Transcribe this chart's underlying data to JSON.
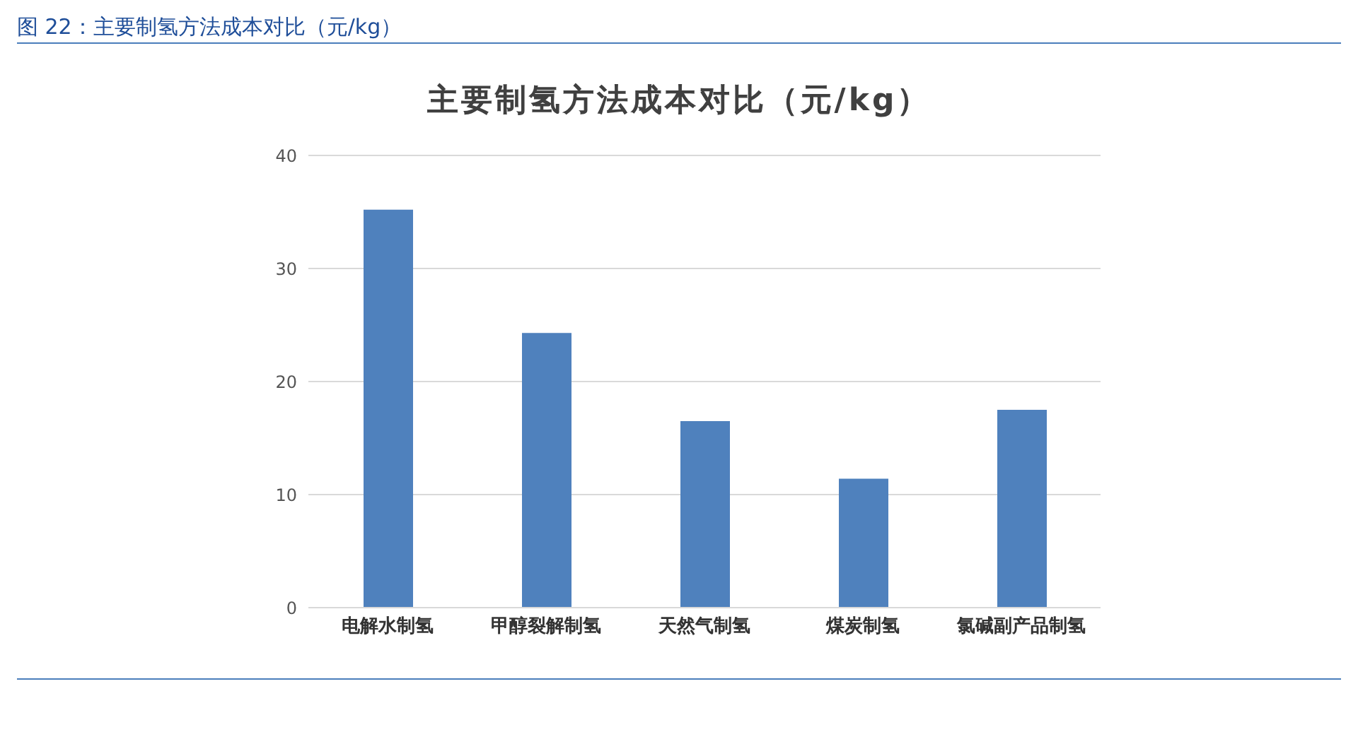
{
  "chart_data": {
    "type": "bar",
    "title": "主要制氢方法成本对比（元/kg）",
    "annotations": [
      "图 22：主要制氢方法成本对比（元/kg）"
    ],
    "categories": [
      "电解水制氢",
      "甲醇裂解制氢",
      "天然气制氢",
      "煤炭制氢",
      "氯碱副产品制氢"
    ],
    "values": [
      35.2,
      24.3,
      16.5,
      11.4,
      17.5
    ],
    "color": "#4f81bd",
    "ylim": [
      0,
      40
    ],
    "yticks": [
      0,
      10,
      20,
      30,
      40
    ],
    "grid": "y"
  }
}
